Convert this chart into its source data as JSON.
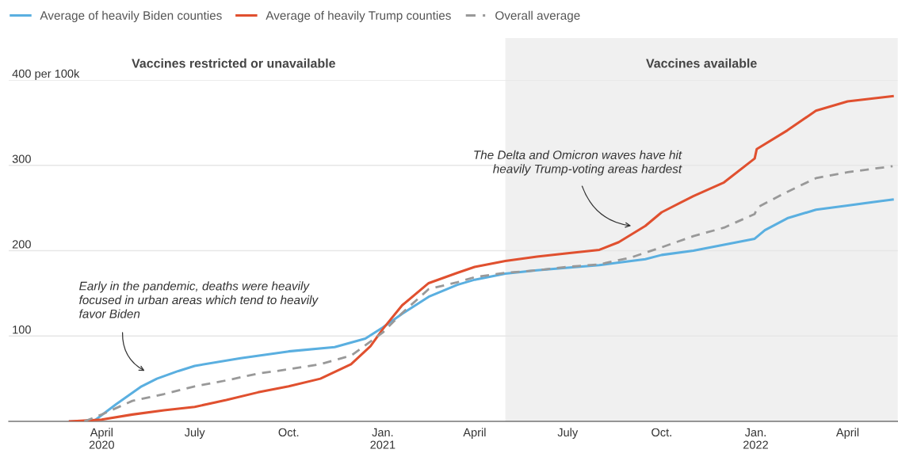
{
  "chart_data": {
    "type": "line",
    "xlim": [
      "2020-01-01",
      "2022-05-20"
    ],
    "xticks": [
      {
        "value": "2020-04-01",
        "label": "April\n2020"
      },
      {
        "value": "2020-07-01",
        "label": "July"
      },
      {
        "value": "2020-10-01",
        "label": "Oct."
      },
      {
        "value": "2021-01-01",
        "label": "Jan.\n2021"
      },
      {
        "value": "2021-04-01",
        "label": "April"
      },
      {
        "value": "2021-07-01",
        "label": "July"
      },
      {
        "value": "2021-10-01",
        "label": "Oct."
      },
      {
        "value": "2022-01-01",
        "label": "Jan.\n2022"
      },
      {
        "value": "2022-04-01",
        "label": "April"
      }
    ],
    "ylim": [
      0,
      400
    ],
    "yticks": [
      100,
      200,
      300,
      {
        "value": 400,
        "label": "400 per 100k"
      }
    ],
    "grid": "y",
    "legend": "top left",
    "series": [
      {
        "name": "Average of heavily Biden counties",
        "color": "#5aafe0",
        "line_style": "solid",
        "x": [
          "2020-03-01",
          "2020-03-25",
          "2020-04-15",
          "2020-05-10",
          "2020-05-25",
          "2020-06-15",
          "2020-07-01",
          "2020-08-15",
          "2020-10-01",
          "2020-11-15",
          "2020-12-15",
          "2021-01-01",
          "2021-01-20",
          "2021-02-15",
          "2021-03-15",
          "2021-04-01",
          "2021-05-01",
          "2021-06-01",
          "2021-07-01",
          "2021-08-01",
          "2021-08-20",
          "2021-09-15",
          "2021-10-01",
          "2021-11-01",
          "2021-12-01",
          "2021-12-31",
          "2022-01-10",
          "2022-02-01",
          "2022-03-01",
          "2022-04-01",
          "2022-05-15"
        ],
        "values": [
          0,
          1,
          20,
          41,
          50,
          59,
          65,
          74,
          82,
          87,
          97,
          110,
          126,
          146,
          160,
          166,
          173,
          177,
          180,
          183,
          186,
          190,
          195,
          200,
          207,
          214,
          224,
          238,
          248,
          253,
          260
        ]
      },
      {
        "name": "Average of heavily Trump counties",
        "color": "#e0502f",
        "line_style": "solid",
        "x": [
          "2020-03-01",
          "2020-04-01",
          "2020-05-01",
          "2020-06-01",
          "2020-07-01",
          "2020-08-01",
          "2020-09-01",
          "2020-10-01",
          "2020-11-01",
          "2020-12-01",
          "2020-12-20",
          "2021-01-01",
          "2021-01-20",
          "2021-02-15",
          "2021-03-15",
          "2021-04-01",
          "2021-05-01",
          "2021-06-01",
          "2021-07-01",
          "2021-08-01",
          "2021-08-20",
          "2021-09-15",
          "2021-10-01",
          "2021-11-01",
          "2021-12-01",
          "2021-12-31",
          "2022-01-02",
          "2022-02-01",
          "2022-03-01",
          "2022-04-01",
          "2022-05-15"
        ],
        "values": [
          0,
          2,
          8,
          13,
          17,
          25,
          34,
          41,
          50,
          67,
          88,
          108,
          136,
          162,
          174,
          181,
          188,
          193,
          197,
          201,
          210,
          229,
          245,
          264,
          280,
          308,
          319,
          341,
          364,
          375,
          381
        ]
      },
      {
        "name": "Overall average",
        "color": "#999999",
        "line_style": "dashed",
        "x": [
          "2020-03-15",
          "2020-04-01",
          "2020-05-01",
          "2020-06-01",
          "2020-07-01",
          "2020-08-01",
          "2020-09-01",
          "2020-10-01",
          "2020-11-01",
          "2020-12-01",
          "2021-01-01",
          "2021-01-20",
          "2021-02-15",
          "2021-03-15",
          "2021-04-01",
          "2021-05-01",
          "2021-06-01",
          "2021-07-01",
          "2021-08-01",
          "2021-09-01",
          "2021-10-01",
          "2021-11-01",
          "2021-12-01",
          "2021-12-31",
          "2022-01-03",
          "2022-02-01",
          "2022-03-01",
          "2022-04-01",
          "2022-05-15"
        ],
        "values": [
          0,
          8,
          24,
          32,
          41,
          48,
          56,
          61,
          67,
          77,
          104,
          127,
          155,
          163,
          169,
          174,
          177,
          181,
          184,
          192,
          204,
          217,
          227,
          243,
          251,
          269,
          285,
          292,
          299
        ]
      }
    ],
    "bands": [
      {
        "axis": "x",
        "from": "2021-05-01",
        "to": "2022-05-20",
        "label": "Vaccines available",
        "color": "#f0f0f0"
      }
    ],
    "annotations": [
      "Vaccines restricted or unavailable",
      "Early in the pandemic, deaths were heavily\nfocused in urban areas which tend to heavily\nfavor Biden",
      "The Delta and Omicron waves have hit\nheavily Trump-voting areas hardest"
    ]
  }
}
